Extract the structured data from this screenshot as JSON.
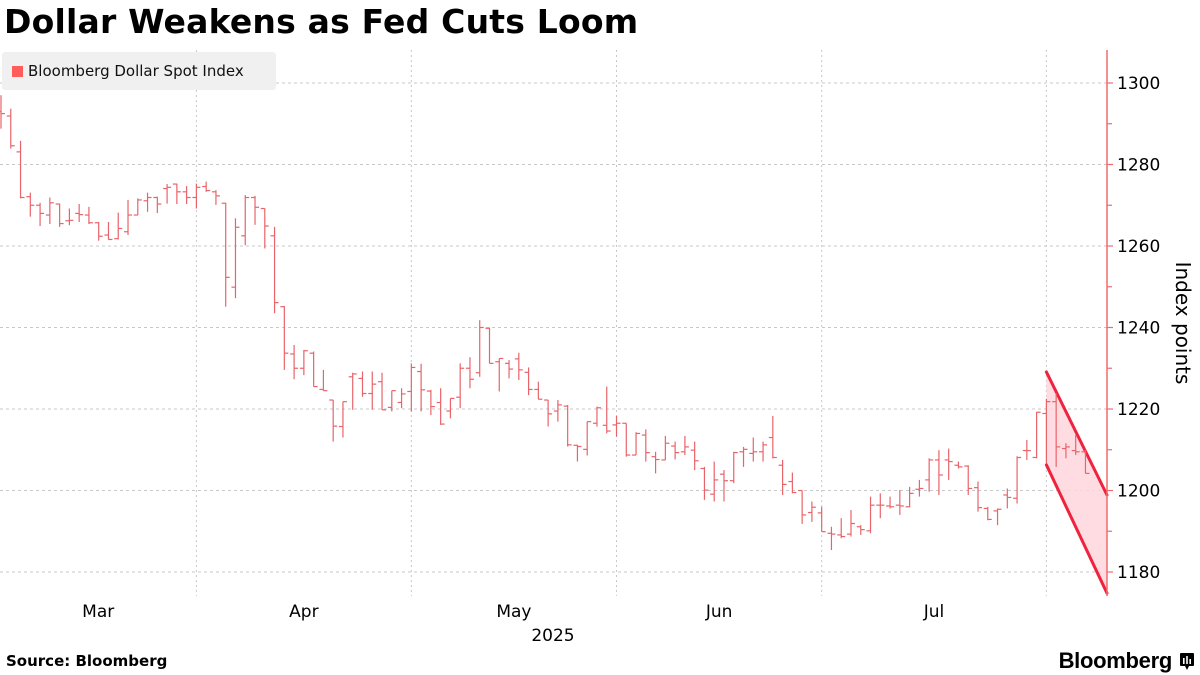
{
  "title": "Dollar Weakens as Fed Cuts Loom",
  "source": "Source: Bloomberg",
  "logo_text": "Bloomberg",
  "colors": {
    "bars": "#e8646a",
    "legend_swatch": "#ff5c5c",
    "axis": "#f26b6b",
    "channel_line": "#f0233f",
    "channel_fill": "#ffd6dc",
    "grid": "#c8c8c8"
  },
  "chart_data": {
    "type": "ohlc",
    "title": "Dollar Weakens as Fed Cuts Loom",
    "legend": [
      {
        "name": "Bloomberg Dollar Spot Index",
        "position": "top-left"
      }
    ],
    "ylabel": "Index points",
    "y_axis_side": "right",
    "ylim": [
      1174,
      1308
    ],
    "y_ticks": [
      1180,
      1200,
      1220,
      1240,
      1260,
      1280,
      1300
    ],
    "x_ticks": [
      "Mar",
      "Apr",
      "May",
      "Jun",
      "Jul"
    ],
    "x_year_label": "2025",
    "grid": true,
    "bar_fields": [
      "date",
      "open",
      "high",
      "low",
      "close"
    ],
    "bars": [
      [
        "2025-03-04",
        1293.0,
        1297.0,
        1288.8,
        1292.5
      ],
      [
        "2025-03-05",
        1291.9,
        1293.7,
        1283.9,
        1284.6
      ],
      [
        "2025-03-06",
        1283.1,
        1285.8,
        1271.7,
        1271.9
      ],
      [
        "2025-03-07",
        1272.1,
        1273.1,
        1267.2,
        1270.0
      ],
      [
        "2025-03-10",
        1270.0,
        1270.6,
        1264.9,
        1268.0
      ],
      [
        "2025-03-11",
        1267.6,
        1271.9,
        1265.4,
        1270.6
      ],
      [
        "2025-03-12",
        1270.3,
        1270.4,
        1264.7,
        1265.5
      ],
      [
        "2025-03-13",
        1266.2,
        1269.2,
        1265.1,
        1266.3
      ],
      [
        "2025-03-14",
        1268.0,
        1270.3,
        1265.9,
        1267.7
      ],
      [
        "2025-03-17",
        1267.6,
        1269.6,
        1265.4,
        1265.7
      ],
      [
        "2025-03-18",
        1265.7,
        1265.9,
        1261.3,
        1262.4
      ],
      [
        "2025-03-19",
        1262.7,
        1265.9,
        1261.6,
        1261.6
      ],
      [
        "2025-03-20",
        1261.8,
        1268.2,
        1261.6,
        1264.3
      ],
      [
        "2025-03-21",
        1263.5,
        1271.3,
        1262.7,
        1267.6
      ],
      [
        "2025-03-24",
        1267.6,
        1271.7,
        1267.6,
        1271.3
      ],
      [
        "2025-03-25",
        1271.1,
        1273.1,
        1268.4,
        1271.9
      ],
      [
        "2025-03-26",
        1271.9,
        1272.1,
        1268.1,
        1270.3
      ],
      [
        "2025-03-27",
        1274.1,
        1275.2,
        1270.4,
        1274.4
      ],
      [
        "2025-03-28",
        1275.2,
        1275.3,
        1270.3,
        1273.3
      ],
      [
        "2025-03-31",
        1273.3,
        1274.7,
        1270.3,
        1271.9
      ],
      [
        "2025-04-01",
        1271.9,
        1275.3,
        1269.2,
        1274.4
      ],
      [
        "2025-04-02",
        1274.6,
        1275.8,
        1273.3,
        1273.6
      ],
      [
        "2025-04-03",
        1273.3,
        1273.7,
        1270.1,
        1272.3
      ],
      [
        "2025-04-04",
        1270.5,
        1270.6,
        1245.1,
        1252.3
      ],
      [
        "2025-04-07",
        1249.9,
        1266.8,
        1247.2,
        1264.6
      ],
      [
        "2025-04-08",
        1262.5,
        1272.5,
        1260.2,
        1271.9
      ],
      [
        "2025-04-09",
        1271.9,
        1272.3,
        1265.2,
        1269.5
      ],
      [
        "2025-04-10",
        1269.2,
        1269.2,
        1259.4,
        1264.9
      ],
      [
        "2025-04-11",
        1262.5,
        1264.7,
        1243.5,
        1246.1
      ],
      [
        "2025-04-14",
        1245.1,
        1245.3,
        1229.6,
        1233.7
      ],
      [
        "2025-04-15",
        1233.5,
        1235.7,
        1227.3,
        1230.0
      ],
      [
        "2025-04-16",
        1230.0,
        1234.5,
        1228.3,
        1234.3
      ],
      [
        "2025-04-17",
        1233.7,
        1234.1,
        1225.5,
        1225.5
      ],
      [
        "2025-04-18",
        1224.8,
        1229.6,
        1224.5,
        1224.5
      ],
      [
        "2025-04-21",
        1222.2,
        1222.2,
        1212.0,
        1215.8
      ],
      [
        "2025-04-22",
        1215.7,
        1221.8,
        1213.0,
        1221.8
      ],
      [
        "2025-04-23",
        1227.9,
        1228.9,
        1219.8,
        1228.6
      ],
      [
        "2025-04-24",
        1227.5,
        1229.2,
        1223.0,
        1223.8
      ],
      [
        "2025-04-25",
        1223.8,
        1229.2,
        1219.8,
        1226.1
      ],
      [
        "2025-04-28",
        1226.7,
        1228.9,
        1219.8,
        1219.8
      ],
      [
        "2025-04-29",
        1220.4,
        1224.5,
        1219.4,
        1224.5
      ],
      [
        "2025-04-30",
        1221.6,
        1225.1,
        1220.2,
        1223.7
      ],
      [
        "2025-05-01",
        1224.3,
        1231.2,
        1219.4,
        1230.2
      ],
      [
        "2025-05-02",
        1229.2,
        1231.1,
        1219.4,
        1224.7
      ],
      [
        "2025-05-05",
        1224.4,
        1224.7,
        1218.5,
        1220.6
      ],
      [
        "2025-05-06",
        1221.6,
        1225.1,
        1216.1,
        1216.3
      ],
      [
        "2025-05-07",
        1219.5,
        1222.6,
        1217.7,
        1222.6
      ],
      [
        "2025-05-08",
        1222.9,
        1231.2,
        1220.2,
        1230.0
      ],
      [
        "2025-05-09",
        1230.0,
        1232.7,
        1225.1,
        1227.3
      ],
      [
        "2025-05-12",
        1228.9,
        1241.8,
        1227.9,
        1240.0
      ],
      [
        "2025-05-13",
        1239.8,
        1240.0,
        1231.2,
        1231.2
      ],
      [
        "2025-05-14",
        1231.6,
        1232.4,
        1224.3,
        1232.4
      ],
      [
        "2025-05-15",
        1231.2,
        1232.0,
        1227.5,
        1229.8
      ],
      [
        "2025-05-16",
        1232.3,
        1233.8,
        1227.1,
        1229.6
      ],
      [
        "2025-05-19",
        1229.0,
        1230.2,
        1223.4,
        1224.8
      ],
      [
        "2025-05-20",
        1224.8,
        1226.7,
        1222.4,
        1222.4
      ],
      [
        "2025-05-21",
        1222.2,
        1222.2,
        1215.7,
        1218.8
      ],
      [
        "2025-05-22",
        1219.5,
        1222.2,
        1216.9,
        1221.0
      ],
      [
        "2025-05-23",
        1220.7,
        1221.0,
        1210.8,
        1211.2
      ],
      [
        "2025-05-27",
        1211.1,
        1211.2,
        1207.1,
        1210.8
      ],
      [
        "2025-05-28",
        1210.1,
        1216.9,
        1208.6,
        1216.9
      ],
      [
        "2025-05-29",
        1216.5,
        1220.6,
        1215.7,
        1220.3
      ],
      [
        "2025-05-30",
        1216.0,
        1225.5,
        1214.0,
        1214.6
      ],
      [
        "2025-06-02",
        1216.1,
        1218.3,
        1213.2,
        1216.5
      ],
      [
        "2025-06-03",
        1216.5,
        1216.5,
        1208.3,
        1208.7
      ],
      [
        "2025-06-04",
        1208.7,
        1214.3,
        1208.7,
        1214.0
      ],
      [
        "2025-06-05",
        1213.6,
        1215.0,
        1207.1,
        1209.3
      ],
      [
        "2025-06-06",
        1208.3,
        1209.5,
        1204.2,
        1207.6
      ],
      [
        "2025-06-09",
        1207.5,
        1213.4,
        1207.5,
        1211.6
      ],
      [
        "2025-06-10",
        1210.9,
        1212.0,
        1207.6,
        1209.3
      ],
      [
        "2025-06-11",
        1209.5,
        1213.4,
        1208.7,
        1210.7
      ],
      [
        "2025-06-12",
        1209.9,
        1212.0,
        1205.0,
        1207.3
      ],
      [
        "2025-06-13",
        1205.4,
        1205.8,
        1197.7,
        1200.1
      ],
      [
        "2025-06-16",
        1199.1,
        1207.1,
        1197.3,
        1202.6
      ],
      [
        "2025-06-17",
        1204.0,
        1205.0,
        1197.3,
        1202.4
      ],
      [
        "2025-06-18",
        1202.4,
        1209.5,
        1201.8,
        1209.3
      ],
      [
        "2025-06-19",
        1209.5,
        1210.7,
        1205.8,
        1210.1
      ],
      [
        "2025-06-20",
        1209.1,
        1213.0,
        1207.1,
        1209.5
      ],
      [
        "2025-06-23",
        1209.5,
        1212.0,
        1207.1,
        1211.2
      ],
      [
        "2025-06-24",
        1213.0,
        1218.3,
        1207.9,
        1208.1
      ],
      [
        "2025-06-25",
        1206.2,
        1207.5,
        1198.9,
        1201.5
      ],
      [
        "2025-06-26",
        1202.2,
        1204.4,
        1199.3,
        1199.5
      ],
      [
        "2025-06-27",
        1200.0,
        1200.0,
        1191.8,
        1194.0
      ],
      [
        "2025-06-30",
        1194.6,
        1197.3,
        1192.3,
        1195.9
      ],
      [
        "2025-07-01",
        1194.5,
        1196.0,
        1189.9,
        1189.9
      ],
      [
        "2025-07-02",
        1189.5,
        1191.1,
        1185.4,
        1189.3
      ],
      [
        "2025-07-03",
        1189.1,
        1193.2,
        1188.3,
        1188.7
      ],
      [
        "2025-07-04",
        1189.3,
        1195.2,
        1188.7,
        1191.9
      ],
      [
        "2025-07-07",
        1191.1,
        1191.5,
        1189.1,
        1190.4
      ],
      [
        "2025-07-08",
        1190.1,
        1198.5,
        1189.5,
        1196.4
      ],
      [
        "2025-07-09",
        1196.4,
        1199.3,
        1193.2,
        1196.4
      ],
      [
        "2025-07-10",
        1196.2,
        1198.5,
        1195.6,
        1196.0
      ],
      [
        "2025-07-11",
        1196.4,
        1200.1,
        1194.0,
        1196.2
      ],
      [
        "2025-07-14",
        1196.0,
        1200.9,
        1195.9,
        1199.3
      ],
      [
        "2025-07-15",
        1200.3,
        1202.6,
        1198.5,
        1200.5
      ],
      [
        "2025-07-16",
        1202.6,
        1207.9,
        1199.7,
        1207.5
      ],
      [
        "2025-07-17",
        1207.5,
        1209.9,
        1198.9,
        1203.8
      ],
      [
        "2025-07-18",
        1207.5,
        1210.3,
        1202.6,
        1207.1
      ],
      [
        "2025-07-21",
        1206.2,
        1207.1,
        1205.4,
        1205.8
      ],
      [
        "2025-07-22",
        1206.0,
        1206.2,
        1198.9,
        1200.5
      ],
      [
        "2025-07-23",
        1200.7,
        1202.2,
        1194.8,
        1195.8
      ],
      [
        "2025-07-24",
        1195.6,
        1196.0,
        1192.7,
        1192.9
      ],
      [
        "2025-07-25",
        1195.0,
        1195.6,
        1191.5,
        1195.4
      ],
      [
        "2025-07-28",
        1198.9,
        1200.5,
        1195.6,
        1198.3
      ],
      [
        "2025-07-29",
        1198.1,
        1208.4,
        1196.8,
        1208.1
      ],
      [
        "2025-07-30",
        1209.8,
        1212.4,
        1207.5,
        1209.8
      ],
      [
        "2025-07-31",
        1208.1,
        1219.3,
        1207.9,
        1219.2
      ],
      [
        "2025-08-01",
        1218.9,
        1222.5,
        1206.6,
        1221.8
      ],
      [
        "2025-08-04",
        1221.8,
        1223.8,
        1205.8,
        1210.7
      ],
      [
        "2025-08-05",
        1210.3,
        1211.6,
        1207.9,
        1210.7
      ],
      [
        "2025-08-06",
        1209.8,
        1213.6,
        1208.7,
        1209.5
      ],
      [
        "2025-08-07",
        1209.5,
        1209.9,
        1204.2,
        1204.2
      ]
    ],
    "annotation": {
      "type": "downward-channel",
      "start_date": "2025-08-01",
      "upper": [
        1229.1,
        1198.9
      ],
      "lower": [
        1206.3,
        1174.8
      ]
    }
  }
}
